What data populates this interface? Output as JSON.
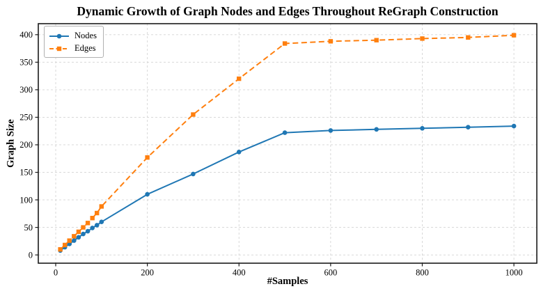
{
  "chart_data": {
    "type": "line",
    "title": "Dynamic Growth of Graph Nodes and Edges Throughout ReGraph Construction",
    "xlabel": "#Samples",
    "ylabel": "Graph Size",
    "x": [
      10,
      20,
      30,
      40,
      50,
      60,
      70,
      80,
      90,
      100,
      200,
      300,
      400,
      500,
      600,
      700,
      800,
      900,
      1000
    ],
    "series": [
      {
        "name": "Nodes",
        "color": "#1f77b4",
        "linestyle": "solid",
        "marker": "circle",
        "values": [
          8,
          14,
          20,
          26,
          32,
          38,
          43,
          49,
          54,
          60,
          110,
          147,
          187,
          222,
          226,
          228,
          230,
          232,
          234
        ]
      },
      {
        "name": "Edges",
        "color": "#ff7f0e",
        "linestyle": "dashed",
        "marker": "square",
        "values": [
          10,
          18,
          26,
          34,
          42,
          50,
          58,
          67,
          76,
          88,
          177,
          255,
          320,
          384,
          388,
          390,
          393,
          395,
          399
        ]
      }
    ],
    "xlim": [
      -38,
      1050
    ],
    "ylim": [
      -15,
      420
    ],
    "xticks": [
      0,
      200,
      400,
      600,
      800,
      1000
    ],
    "yticks": [
      0,
      50,
      100,
      150,
      200,
      250,
      300,
      350,
      400
    ],
    "grid": true,
    "grid_color": "#d4d4d4",
    "grid_style": "dashed",
    "spine_color": "#1a1a1a",
    "background": "#ffffff",
    "legend_position": "upper-left"
  }
}
